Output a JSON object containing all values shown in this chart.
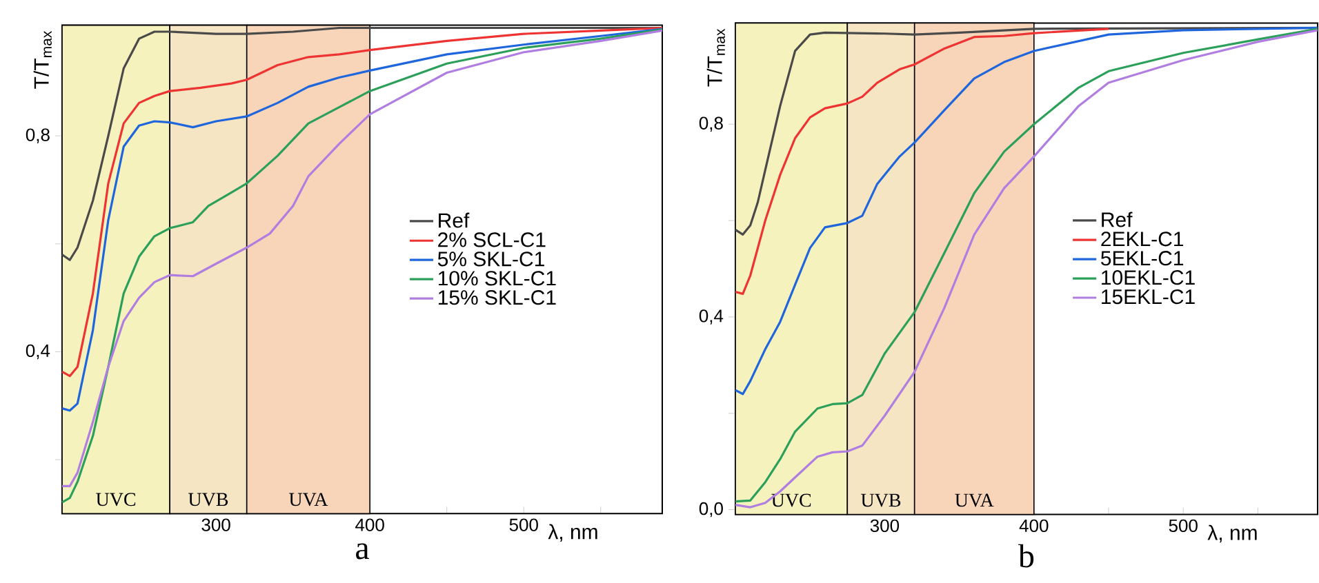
{
  "chart_data": [
    {
      "type": "line",
      "title": "a",
      "xlabel": "λ, nm",
      "ylabel": "T/T$_{max}$",
      "xlim": [
        200,
        590
      ],
      "ylim": [
        0.1,
        1.005
      ],
      "xticks": [
        {
          "value": 250,
          "label": null
        },
        300,
        {
          "value": 350,
          "label": null
        },
        400,
        {
          "value": 450,
          "label": null
        },
        500,
        {
          "value": 550,
          "label": null
        }
      ],
      "yticks": [
        {
          "value": 0.2,
          "label": null
        },
        {
          "value": 0.4,
          "label": "0,4"
        },
        {
          "value": 0.6,
          "label": null
        },
        {
          "value": 0.8,
          "label": "0,8"
        }
      ],
      "grid": false,
      "legend": "right",
      "bands": [
        {
          "axis": "x",
          "from": 200,
          "to": 270,
          "label": "UVC",
          "color": "#f6f2bd"
        },
        {
          "axis": "x",
          "from": 270,
          "to": 320,
          "label": "UVB",
          "color": "#f6e5c2"
        },
        {
          "axis": "x",
          "from": 320,
          "to": 400,
          "label": "UVA",
          "color": "#f8d5b9"
        }
      ],
      "series": [
        {
          "name": "Ref",
          "color": "#4a4a4a",
          "x": [
            200,
            205,
            210,
            220,
            230,
            240,
            250,
            260,
            270,
            300,
            320,
            350,
            380,
            400,
            500,
            590
          ],
          "values": [
            0.58,
            0.57,
            0.593,
            0.68,
            0.8,
            0.925,
            0.98,
            0.993,
            0.993,
            0.989,
            0.989,
            0.993,
            1.0,
            1.0,
            1.0,
            1.0
          ]
        },
        {
          "name": "2% SCL-C1",
          "color": "#ee3333",
          "x": [
            200,
            205,
            210,
            220,
            230,
            240,
            250,
            260,
            270,
            290,
            310,
            320,
            340,
            360,
            380,
            400,
            450,
            500,
            550,
            590
          ],
          "values": [
            0.363,
            0.355,
            0.372,
            0.508,
            0.712,
            0.823,
            0.861,
            0.874,
            0.883,
            0.889,
            0.897,
            0.904,
            0.931,
            0.946,
            0.951,
            0.959,
            0.976,
            0.989,
            0.995,
            1.0
          ]
        },
        {
          "name": "5% SKL-C1",
          "color": "#1f66dd",
          "x": [
            200,
            205,
            210,
            220,
            230,
            240,
            250,
            260,
            270,
            285,
            300,
            320,
            340,
            360,
            380,
            400,
            450,
            500,
            550,
            590
          ],
          "values": [
            0.295,
            0.291,
            0.304,
            0.44,
            0.644,
            0.78,
            0.819,
            0.827,
            0.825,
            0.816,
            0.827,
            0.836,
            0.861,
            0.891,
            0.908,
            0.921,
            0.951,
            0.969,
            0.985,
            0.998
          ]
        },
        {
          "name": "10% SKL-C1",
          "color": "#2ca05a",
          "x": [
            200,
            205,
            210,
            220,
            230,
            240,
            250,
            260,
            270,
            285,
            295,
            310,
            320,
            340,
            360,
            380,
            400,
            450,
            500,
            550,
            590
          ],
          "values": [
            0.121,
            0.129,
            0.159,
            0.244,
            0.372,
            0.508,
            0.576,
            0.614,
            0.629,
            0.64,
            0.67,
            0.695,
            0.712,
            0.763,
            0.823,
            0.853,
            0.883,
            0.934,
            0.963,
            0.98,
            0.997
          ]
        },
        {
          "name": "15% SKL-C1",
          "color": "#b07ee0",
          "x": [
            200,
            205,
            210,
            220,
            230,
            240,
            250,
            260,
            270,
            285,
            300,
            320,
            335,
            350,
            360,
            380,
            400,
            450,
            500,
            550,
            590
          ],
          "values": [
            0.151,
            0.151,
            0.176,
            0.27,
            0.372,
            0.457,
            0.5,
            0.529,
            0.542,
            0.54,
            0.563,
            0.593,
            0.619,
            0.67,
            0.725,
            0.785,
            0.84,
            0.917,
            0.955,
            0.976,
            0.995
          ]
        }
      ]
    },
    {
      "type": "line",
      "title": "b",
      "xlabel": "λ, nm",
      "ylabel": "T/T$_{max}$",
      "xlim": [
        200,
        590
      ],
      "ylim": [
        -0.01,
        1.01
      ],
      "xticks": [
        {
          "value": 250,
          "label": null
        },
        300,
        {
          "value": 350,
          "label": null
        },
        400,
        {
          "value": 450,
          "label": null
        },
        500,
        {
          "value": 550,
          "label": null
        }
      ],
      "yticks": [
        {
          "value": 0.0,
          "label": "0,0"
        },
        {
          "value": 0.2,
          "label": null
        },
        {
          "value": 0.4,
          "label": "0,4"
        },
        {
          "value": 0.6,
          "label": null
        },
        {
          "value": 0.8,
          "label": "0,8"
        }
      ],
      "grid": false,
      "legend": "right",
      "bands": [
        {
          "axis": "x",
          "from": 200,
          "to": 275,
          "label": "UVC",
          "color": "#f6f2bd"
        },
        {
          "axis": "x",
          "from": 275,
          "to": 320,
          "label": "UVB",
          "color": "#f6e5c2"
        },
        {
          "axis": "x",
          "from": 320,
          "to": 400,
          "label": "UVA",
          "color": "#f8d5b9"
        }
      ],
      "series": [
        {
          "name": "Ref",
          "color": "#4a4a4a",
          "x": [
            200,
            205,
            210,
            215,
            220,
            230,
            240,
            250,
            260,
            300,
            320,
            350,
            400,
            590
          ],
          "values": [
            0.581,
            0.571,
            0.59,
            0.638,
            0.705,
            0.838,
            0.952,
            0.986,
            0.99,
            0.988,
            0.986,
            0.99,
            0.998,
            1.0
          ]
        },
        {
          "name": "2EKL-C1",
          "color": "#ee3333",
          "x": [
            200,
            205,
            210,
            220,
            230,
            240,
            250,
            260,
            275,
            285,
            295,
            310,
            320,
            340,
            360,
            380,
            400,
            450
          ],
          "values": [
            0.452,
            0.448,
            0.486,
            0.6,
            0.695,
            0.771,
            0.814,
            0.833,
            0.843,
            0.857,
            0.886,
            0.914,
            0.924,
            0.957,
            0.981,
            0.983,
            0.989,
            0.998
          ]
        },
        {
          "name": "5EKL-C1",
          "color": "#1f66dd",
          "x": [
            200,
            205,
            210,
            220,
            230,
            240,
            250,
            260,
            275,
            285,
            295,
            310,
            320,
            340,
            360,
            380,
            400,
            450,
            500,
            590
          ],
          "values": [
            0.248,
            0.24,
            0.267,
            0.333,
            0.39,
            0.467,
            0.543,
            0.586,
            0.595,
            0.61,
            0.676,
            0.733,
            0.762,
            0.829,
            0.895,
            0.929,
            0.952,
            0.986,
            0.995,
            1.0
          ]
        },
        {
          "name": "10EKL-C1",
          "color": "#2ca05a",
          "x": [
            200,
            210,
            220,
            230,
            240,
            255,
            265,
            275,
            285,
            300,
            320,
            340,
            360,
            380,
            400,
            430,
            450,
            500,
            550,
            590
          ],
          "values": [
            0.017,
            0.019,
            0.057,
            0.105,
            0.162,
            0.21,
            0.219,
            0.221,
            0.238,
            0.324,
            0.41,
            0.533,
            0.657,
            0.743,
            0.8,
            0.876,
            0.91,
            0.948,
            0.976,
            0.998
          ]
        },
        {
          "name": "15EKL-C1",
          "color": "#b07ee0",
          "x": [
            200,
            210,
            220,
            230,
            240,
            255,
            265,
            275,
            285,
            300,
            320,
            340,
            360,
            380,
            400,
            430,
            450,
            500,
            550,
            590
          ],
          "values": [
            0.01,
            0.005,
            0.014,
            0.038,
            0.067,
            0.11,
            0.119,
            0.121,
            0.133,
            0.195,
            0.286,
            0.419,
            0.571,
            0.667,
            0.733,
            0.838,
            0.886,
            0.933,
            0.971,
            0.995
          ]
        }
      ]
    }
  ]
}
